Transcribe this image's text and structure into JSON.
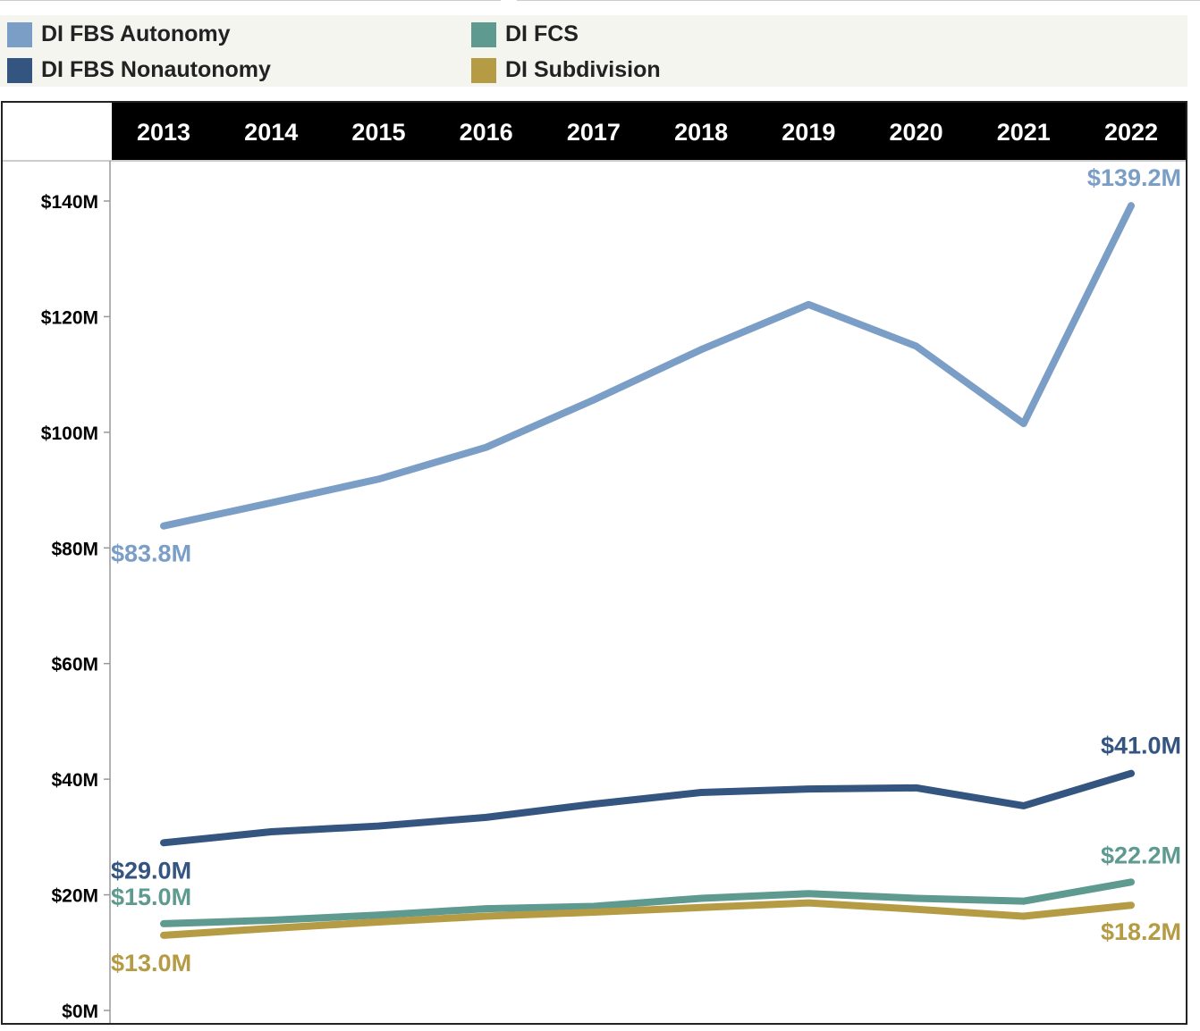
{
  "legend": [
    {
      "label": "DI FBS Autonomy",
      "color": "#7a9ec6"
    },
    {
      "label": "DI FBS Nonautonomy",
      "color": "#34557f"
    },
    {
      "label": "DI FCS",
      "color": "#5e9a90"
    },
    {
      "label": "DI Subdivision",
      "color": "#b59b43"
    }
  ],
  "chart_data": {
    "type": "line",
    "title": "",
    "xlabel": "",
    "ylabel": "",
    "x": [
      "2013",
      "2014",
      "2015",
      "2016",
      "2017",
      "2018",
      "2019",
      "2020",
      "2021",
      "2022"
    ],
    "ylim": [
      0,
      140
    ],
    "yticks": [
      0,
      20,
      40,
      60,
      80,
      100,
      120,
      140
    ],
    "ytick_labels": [
      "$0M",
      "$20M",
      "$40M",
      "$60M",
      "$80M",
      "$100M",
      "$120M",
      "$140M"
    ],
    "legend_position": "top",
    "series": [
      {
        "name": "DI FBS Autonomy",
        "color": "#7a9ec6",
        "values": [
          83.8,
          87.8,
          91.9,
          97.4,
          105.6,
          114.3,
          122.1,
          114.9,
          101.5,
          139.2
        ],
        "start_label": "$83.8M",
        "end_label": "$139.2M"
      },
      {
        "name": "DI FBS Nonautonomy",
        "color": "#34557f",
        "values": [
          29.0,
          30.9,
          31.9,
          33.4,
          35.7,
          37.7,
          38.3,
          38.5,
          35.4,
          41.0
        ],
        "start_label": "$29.0M",
        "end_label": "$41.0M"
      },
      {
        "name": "DI FCS",
        "color": "#5e9a90",
        "values": [
          15.0,
          15.6,
          16.5,
          17.6,
          18.0,
          19.4,
          20.2,
          19.4,
          18.9,
          22.2
        ],
        "start_label": "$15.0M",
        "end_label": "$22.2M"
      },
      {
        "name": "DI Subdivision",
        "color": "#b59b43",
        "values": [
          13.0,
          14.2,
          15.3,
          16.3,
          17.0,
          17.8,
          18.6,
          17.5,
          16.3,
          18.2
        ],
        "start_label": "$13.0M",
        "end_label": "$18.2M"
      }
    ]
  }
}
